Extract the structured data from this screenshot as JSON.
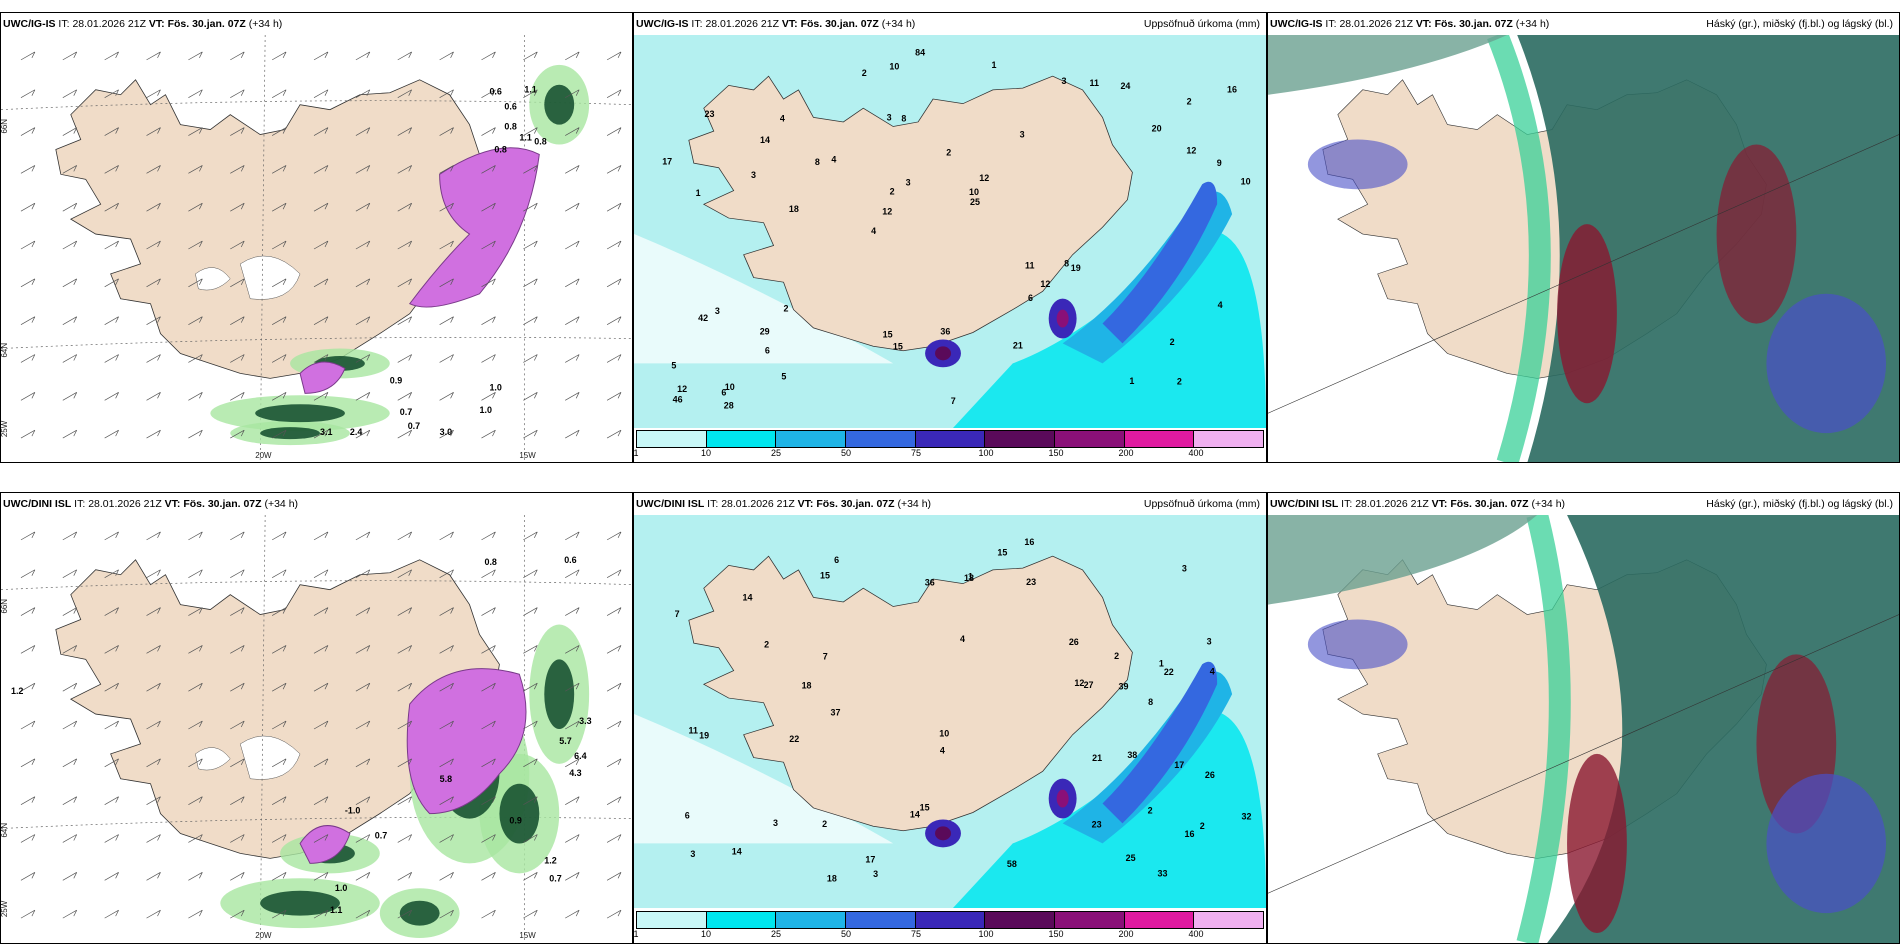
{
  "panels": [
    {
      "model": "UWC/IG-IS",
      "it_label": "IT:",
      "it": "28.01.2026 21Z",
      "vt_label": "VT:",
      "vt": "Fös. 30.jan. 07Z",
      "lead": "(+34 h)",
      "right": ""
    },
    {
      "model": "UWC/IG-IS",
      "it_label": "IT:",
      "it": "28.01.2026 21Z",
      "vt_label": "VT:",
      "vt": "Fös. 30.jan. 07Z",
      "lead": "(+34 h)",
      "right": "Uppsöfnuð úrkoma (mm)"
    },
    {
      "model": "UWC/IG-IS",
      "it_label": "IT:",
      "it": "28.01.2026 21Z",
      "vt_label": "VT:",
      "vt": "Fös. 30.jan. 07Z",
      "lead": "(+34 h)",
      "right": "Háský (gr.), miðský (fj.bl.) og lágský (bl.)"
    },
    {
      "model": "UWC/DINI ISL",
      "it_label": "IT:",
      "it": "28.01.2026 21Z",
      "vt_label": "VT:",
      "vt": "Fös. 30.jan. 07Z",
      "lead": "(+34 h)",
      "right": ""
    },
    {
      "model": "UWC/DINI ISL",
      "it_label": "IT:",
      "it": "28.01.2026 21Z",
      "vt_label": "VT:",
      "vt": "Fös. 30.jan. 07Z",
      "lead": "(+34 h)",
      "right": "Uppsöfnuð úrkoma (mm)"
    },
    {
      "model": "UWC/DINI ISL",
      "it_label": "IT:",
      "it": "28.01.2026 21Z",
      "vt_label": "VT:",
      "vt": "Fös. 30.jan. 07Z",
      "lead": "(+34 h)",
      "right": "Háský (gr.), miðský (fj.bl.) og lágský (bl.)"
    }
  ],
  "axis_labels": {
    "lat66": "66N",
    "lat64": "64N",
    "lon20": "20W",
    "lon15": "15W",
    "lon25": "25W"
  },
  "colorbar": {
    "ticks": [
      "1",
      "10",
      "25",
      "50",
      "75",
      "100",
      "150",
      "200",
      "400"
    ],
    "colors": [
      "#c8f7f7",
      "#00e6ef",
      "#1fb4e6",
      "#3468e0",
      "#3a28b8",
      "#5a0a5a",
      "#8a1078",
      "#e01aa0",
      "#f0b0f0"
    ]
  },
  "colors": {
    "land": "#f0dcc8",
    "sea_precip": "#b4f0f0",
    "snow": "#ffffff",
    "purple": "#d070e0",
    "darkgreen": "#0f4a2a",
    "midgreen": "#2e7a4a",
    "lightgreen": "#a8e6a0",
    "cloud_teal": "#2a6a60",
    "cloud_green": "#3ad098",
    "cloud_red": "#8a1830",
    "cloud_blue": "#4a50c8"
  },
  "p1_labels": [
    "0.6",
    "0.6",
    "0.8",
    "1.1",
    "0.8",
    "0.8",
    "1.1",
    "0.9",
    "1.0",
    "0.7",
    "1.0",
    "3.0",
    "0.7",
    "2.4",
    "3.1"
  ],
  "p4_labels": [
    "0.8",
    "0.6",
    "1.2",
    "-1.0",
    "0.7",
    "0.9",
    "1.0",
    "1.2",
    "0.7",
    "1.1",
    "5.8",
    "4.3",
    "6.4",
    "5.7",
    "3.3"
  ],
  "p2_labels": [
    "2",
    "1",
    "2",
    "4",
    "3",
    "10",
    "3",
    "2",
    "3",
    "4",
    "5",
    "6",
    "8",
    "12",
    "19",
    "23",
    "10",
    "10",
    "11",
    "12",
    "12",
    "15",
    "2",
    "4",
    "3",
    "2",
    "1",
    "2",
    "8",
    "7",
    "8",
    "3",
    "6",
    "5",
    "9",
    "10",
    "12",
    "15",
    "25",
    "42",
    "20",
    "16",
    "12",
    "21",
    "29",
    "28",
    "46",
    "36",
    "24",
    "84",
    "18",
    "17",
    "14",
    "11",
    "6",
    "1",
    "2",
    "3",
    "4"
  ],
  "p5_labels": [
    "2",
    "3",
    "2",
    "4",
    "3",
    "6",
    "1",
    "2",
    "3",
    "2",
    "4",
    "7",
    "8",
    "3",
    "6",
    "14",
    "16",
    "15",
    "15",
    "22",
    "11",
    "19",
    "58",
    "12",
    "17",
    "14",
    "15",
    "23",
    "26",
    "32",
    "22",
    "23",
    "18",
    "10",
    "17",
    "25",
    "27",
    "36",
    "33",
    "37",
    "38",
    "39",
    "18",
    "18",
    "26",
    "21",
    "14",
    "16",
    "7",
    "2",
    "3",
    "4",
    "1"
  ]
}
